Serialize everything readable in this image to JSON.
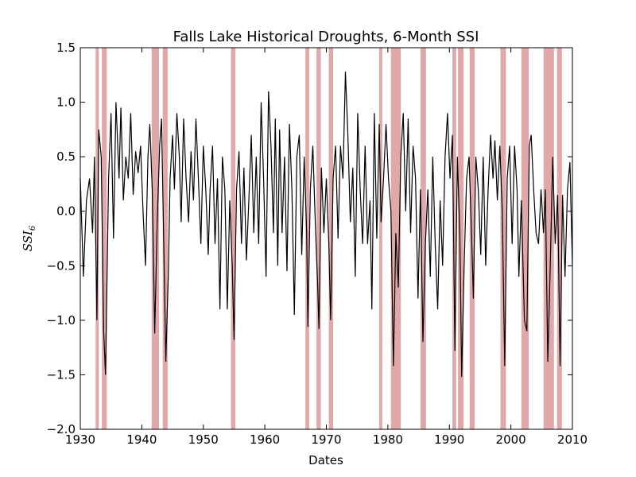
{
  "chart_data": {
    "type": "line",
    "title": "Falls Lake Historical Droughts, 6-Month SSI",
    "xlabel": "Dates",
    "ylabel": {
      "text": "SSI",
      "subscript": "6"
    },
    "line_color": "#000000",
    "span_color": "#e0a8a8",
    "xlim": [
      1930,
      2010
    ],
    "xticks": [
      1930,
      1940,
      1950,
      1960,
      1970,
      1980,
      1990,
      2000,
      2010
    ],
    "ylim": [
      -2.0,
      1.5
    ],
    "yticks": [
      1.5,
      {
        "value": 1.0,
        "label": "1.0"
      },
      0.5,
      {
        "value": 0,
        "label": "0.0"
      },
      {
        "value": -0.5,
        "label": "−0.5"
      },
      {
        "value": -1.0,
        "label": "−1.0"
      },
      {
        "value": -1.5,
        "label": "−1.5"
      },
      {
        "value": -2.0,
        "label": "−2.0"
      }
    ],
    "spans": [
      [
        1932.5,
        1933.0
      ],
      [
        1933.5,
        1934.3
      ],
      [
        1941.6,
        1942.8
      ],
      [
        1943.4,
        1944.2
      ],
      [
        1954.5,
        1955.2
      ],
      [
        1966.6,
        1967.2
      ],
      [
        1968.4,
        1969.1
      ],
      [
        1970.4,
        1971.1
      ],
      [
        1978.6,
        1979.1
      ],
      [
        1980.5,
        1982.1
      ],
      [
        1985.3,
        1986.2
      ],
      [
        1990.5,
        1991.1
      ],
      [
        1991.4,
        1992.3
      ],
      [
        1993.3,
        1994.1
      ],
      [
        1998.3,
        1999.2
      ],
      [
        2001.7,
        2002.9
      ],
      [
        2005.3,
        2007.0
      ],
      [
        2007.5,
        2008.3
      ]
    ],
    "x": [
      1930,
      1930.5,
      1931,
      1931.5,
      1932,
      1932.3,
      1932.7,
      1933,
      1933.4,
      1933.8,
      1934.1,
      1934.6,
      1935,
      1935.4,
      1935.8,
      1936.3,
      1936.6,
      1937,
      1937.4,
      1937.8,
      1938.2,
      1938.6,
      1939,
      1939.4,
      1939.8,
      1940.2,
      1940.6,
      1941,
      1941.3,
      1941.7,
      1942.1,
      1942.5,
      1942.9,
      1943.2,
      1943.6,
      1943.9,
      1944.3,
      1944.6,
      1945,
      1945.3,
      1945.7,
      1946.1,
      1946.4,
      1946.8,
      1947.2,
      1947.6,
      1948,
      1948.4,
      1948.8,
      1949.2,
      1949.6,
      1950,
      1950.4,
      1950.8,
      1951.1,
      1951.5,
      1951.9,
      1952.3,
      1952.7,
      1953.1,
      1953.5,
      1953.9,
      1954.3,
      1954.7,
      1955,
      1955.4,
      1955.8,
      1956.2,
      1956.6,
      1957,
      1957.4,
      1957.8,
      1958.2,
      1958.6,
      1959,
      1959.4,
      1959.8,
      1960.2,
      1960.6,
      1961,
      1961.4,
      1961.7,
      1962.1,
      1962.4,
      1962.8,
      1963.2,
      1963.6,
      1964,
      1964.4,
      1964.8,
      1965.2,
      1965.6,
      1966,
      1966.4,
      1966.8,
      1967,
      1967.4,
      1967.8,
      1968.2,
      1968.6,
      1968.8,
      1969.2,
      1969.6,
      1970,
      1970.4,
      1970.7,
      1971.1,
      1971.5,
      1971.9,
      1972.3,
      1972.7,
      1973.1,
      1973.5,
      1973.9,
      1974.3,
      1974.7,
      1975.1,
      1975.5,
      1975.9,
      1976.3,
      1976.7,
      1977.1,
      1977.4,
      1977.8,
      1978.2,
      1978.6,
      1978.9,
      1979.3,
      1979.7,
      1980.1,
      1980.5,
      1980.9,
      1981.3,
      1981.7,
      1982.1,
      1982.5,
      1982.9,
      1983.3,
      1983.7,
      1984.1,
      1984.5,
      1984.9,
      1985.3,
      1985.7,
      1986.1,
      1986.5,
      1986.9,
      1987.3,
      1987.7,
      1988.1,
      1988.5,
      1988.9,
      1989.3,
      1989.7,
      1990.1,
      1990.5,
      1990.9,
      1991.3,
      1991.7,
      1992.0,
      1992.4,
      1992.8,
      1993.2,
      1993.6,
      1993.9,
      1994.3,
      1994.7,
      1995.1,
      1995.5,
      1995.9,
      1996.3,
      1996.7,
      1997.1,
      1997.4,
      1997.8,
      1998.2,
      1998.6,
      1999.0,
      1999.4,
      1999.8,
      2000.2,
      2000.6,
      2001,
      2001.3,
      2001.7,
      2002.2,
      2002.6,
      2003,
      2003.3,
      2003.7,
      2004.1,
      2004.5,
      2004.9,
      2005.3,
      2005.6,
      2006.0,
      2006.4,
      2006.8,
      2007.2,
      2007.6,
      2008.0,
      2008.4,
      2008.8,
      2009.2,
      2009.6,
      2010
    ],
    "values": [
      0.3,
      -0.6,
      0.1,
      0.3,
      -0.2,
      0.5,
      -1.0,
      0.75,
      0.5,
      -1.1,
      -1.5,
      0.3,
      0.9,
      -0.25,
      1.0,
      0.3,
      0.95,
      0.1,
      0.5,
      0.3,
      0.9,
      0.15,
      0.55,
      0.35,
      0.6,
      0.0,
      -0.5,
      0.5,
      0.8,
      0.2,
      -1.12,
      -0.1,
      0.6,
      0.85,
      -0.4,
      -1.38,
      -0.6,
      0.3,
      0.7,
      0.2,
      0.9,
      0.5,
      -0.1,
      0.85,
      0.3,
      -0.1,
      0.55,
      0.1,
      0.85,
      0.3,
      -0.3,
      0.6,
      0.2,
      -0.4,
      0.2,
      0.6,
      -0.3,
      0.3,
      -0.9,
      0.5,
      0.2,
      -0.9,
      0.1,
      -0.5,
      -1.18,
      0.2,
      0.55,
      -0.3,
      0.4,
      -0.45,
      0.1,
      0.7,
      -0.2,
      0.5,
      -0.3,
      1.0,
      0.3,
      -0.6,
      1.1,
      0.6,
      -0.2,
      0.85,
      -0.5,
      0.75,
      -0.2,
      0.5,
      -0.55,
      0.8,
      0.2,
      -0.95,
      0.5,
      0.7,
      -0.4,
      0.5,
      -0.2,
      -1.06,
      0.2,
      0.6,
      -0.1,
      -0.7,
      -1.08,
      0.4,
      -0.2,
      0.3,
      -0.3,
      -1.0,
      0.3,
      0.6,
      -0.25,
      0.6,
      0.3,
      1.28,
      0.7,
      -0.1,
      0.4,
      -0.6,
      0.9,
      0.2,
      -0.3,
      0.6,
      -0.3,
      0.1,
      -0.9,
      0.9,
      -0.25,
      0.8,
      -0.1,
      0.3,
      0.8,
      0.3,
      0.0,
      -1.42,
      -0.2,
      -0.7,
      0.5,
      0.9,
      0.0,
      0.85,
      -0.2,
      0.6,
      0.3,
      -0.8,
      0.2,
      -1.2,
      -0.3,
      0.2,
      -0.6,
      0.5,
      -0.3,
      -0.9,
      0.1,
      -0.5,
      0.5,
      0.9,
      0.3,
      0.7,
      -1.28,
      0.5,
      -0.2,
      -1.52,
      -0.5,
      0.3,
      0.5,
      -0.2,
      -0.8,
      0.5,
      0.2,
      -0.4,
      0.5,
      -0.5,
      0.2,
      0.7,
      0.3,
      0.65,
      0.1,
      0.6,
      0.0,
      -1.42,
      0.3,
      0.6,
      -0.3,
      0.6,
      0.2,
      -0.6,
      0.1,
      -1.0,
      -1.1,
      0.6,
      0.7,
      0.2,
      -0.2,
      -0.3,
      0.2,
      -0.2,
      0.2,
      -1.38,
      -0.5,
      0.5,
      -0.3,
      0.15,
      -1.42,
      0.15,
      -0.6,
      0.2,
      0.45,
      -0.5
    ]
  }
}
